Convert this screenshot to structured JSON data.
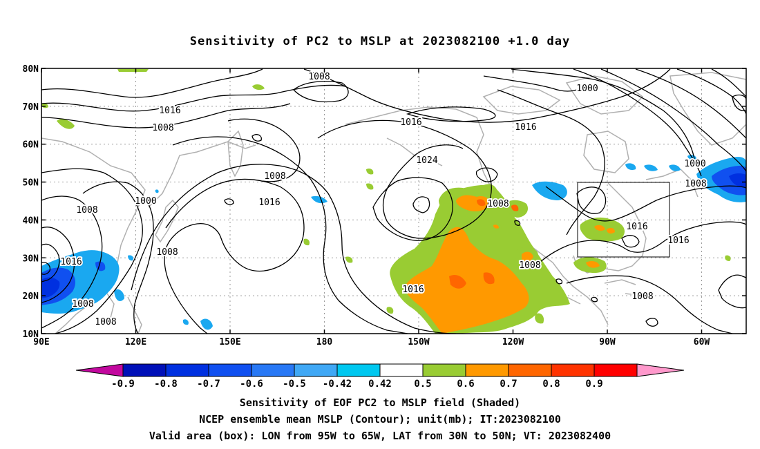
{
  "title": "Sensitivity of PC2 to MSLP at 2023082100 +1.0 day",
  "lat_labels": [
    "80N",
    "70N",
    "60N",
    "50N",
    "40N",
    "30N",
    "20N",
    "10N"
  ],
  "lon_labels": [
    "90E",
    "120E",
    "150E",
    "180",
    "150W",
    "120W",
    "90W",
    "60W"
  ],
  "contour_labels": [
    "1008",
    "1016",
    "1008",
    "1000",
    "1008",
    "1008",
    "1016",
    "1008",
    "1008",
    "1016",
    "1024",
    "1016",
    "1016",
    "1008",
    "1008",
    "1016",
    "1008",
    "1000",
    "1016",
    "1000",
    "1008",
    "1016",
    "1008"
  ],
  "valid_box": {
    "lon_from": "95W",
    "lon_to": "65W",
    "lat_from": "30N",
    "lat_to": "50N"
  },
  "colorbar": {
    "labels": [
      "-0.9",
      "-0.8",
      "-0.7",
      "-0.6",
      "-0.5",
      "-0.42",
      "0.42",
      "0.5",
      "0.6",
      "0.7",
      "0.8",
      "0.9"
    ],
    "colors": [
      "#c2089e",
      "#0010b8",
      "#0030e0",
      "#1050f0",
      "#2878f5",
      "#40a8f5",
      "#00c8f0",
      "#ffffff",
      "#99cc33",
      "#ff9900",
      "#ff6600",
      "#ff3300",
      "#ff0000",
      "#ff99cc"
    ]
  },
  "captions": [
    "Sensitivity of EOF PC2 to MSLP field (Shaded)",
    "NCEP ensemble mean MSLP (Contour); unit(mb); IT:2023082100",
    "Valid area (box): LON from 95W to 65W, LAT from 30N to 50N; VT: 2023082400"
  ],
  "colors": {
    "green": "#99cc33",
    "orange": "#ff9900",
    "dark_orange": "#ff6600",
    "light_blue": "#1aa8f0",
    "blue": "#1050f0",
    "coast": "#b0b0b0"
  }
}
